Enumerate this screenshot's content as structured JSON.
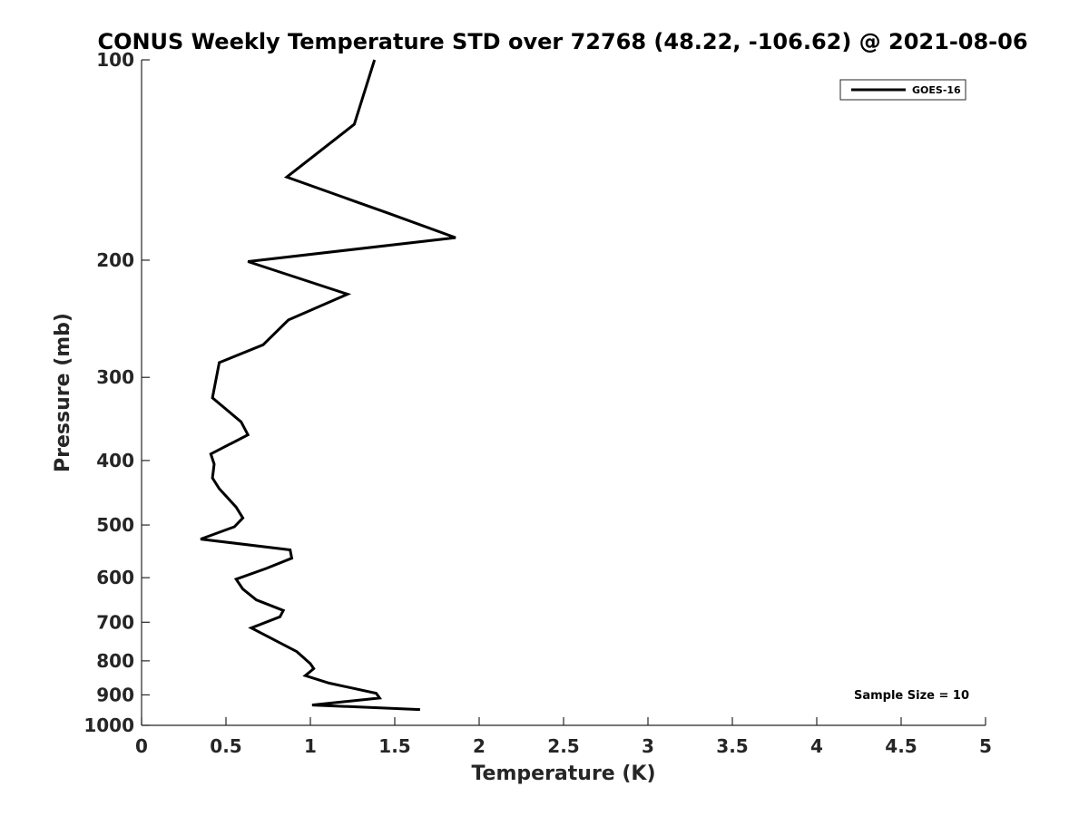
{
  "chart_data": {
    "type": "line",
    "title": "CONUS Weekly Temperature STD over 72768 (48.22, -106.62) @ 2021-08-06",
    "xlabel": "Temperature (K)",
    "ylabel": "Pressure (mb)",
    "xlim": [
      0,
      5
    ],
    "ylim": [
      100,
      1000
    ],
    "y_scale": "log",
    "y_reversed": true,
    "x_ticks": [
      0,
      0.5,
      1,
      1.5,
      2,
      2.5,
      3,
      3.5,
      4,
      4.5,
      5
    ],
    "x_tick_labels": [
      "0",
      "0.5",
      "1",
      "1.5",
      "2",
      "2.5",
      "3",
      "3.5",
      "4",
      "4.5",
      "5"
    ],
    "y_ticks": [
      100,
      200,
      300,
      400,
      500,
      600,
      700,
      800,
      900,
      1000
    ],
    "y_tick_labels": [
      "100",
      "200",
      "300",
      "400",
      "500",
      "600",
      "700",
      "800",
      "900",
      "1000"
    ],
    "grid": false,
    "legend": {
      "position": "top-right",
      "entries": [
        "GOES-16"
      ]
    },
    "annotation": "Sample Size = 10",
    "series": [
      {
        "name": "GOES-16",
        "color": "#000000",
        "points": [
          [
            1.38,
            100
          ],
          [
            1.26,
            125
          ],
          [
            0.86,
            150
          ],
          [
            1.46,
            170
          ],
          [
            1.86,
            185
          ],
          [
            0.63,
            201
          ],
          [
            1.22,
            225
          ],
          [
            0.87,
            246
          ],
          [
            0.72,
            268
          ],
          [
            0.46,
            285
          ],
          [
            0.42,
            322
          ],
          [
            0.59,
            350
          ],
          [
            0.63,
            366
          ],
          [
            0.41,
            391
          ],
          [
            0.43,
            405
          ],
          [
            0.42,
            425
          ],
          [
            0.46,
            441
          ],
          [
            0.56,
            470
          ],
          [
            0.6,
            488
          ],
          [
            0.55,
            503
          ],
          [
            0.35,
            525
          ],
          [
            0.88,
            545
          ],
          [
            0.89,
            561
          ],
          [
            0.74,
            581
          ],
          [
            0.56,
            603
          ],
          [
            0.6,
            624
          ],
          [
            0.68,
            648
          ],
          [
            0.84,
            672
          ],
          [
            0.82,
            687
          ],
          [
            0.65,
            714
          ],
          [
            0.92,
            775
          ],
          [
            1.0,
            808
          ],
          [
            1.02,
            822
          ],
          [
            0.97,
            842
          ],
          [
            1.11,
            864
          ],
          [
            1.39,
            895
          ],
          [
            1.41,
            910
          ],
          [
            1.01,
            932
          ],
          [
            1.65,
            947
          ]
        ]
      }
    ]
  }
}
